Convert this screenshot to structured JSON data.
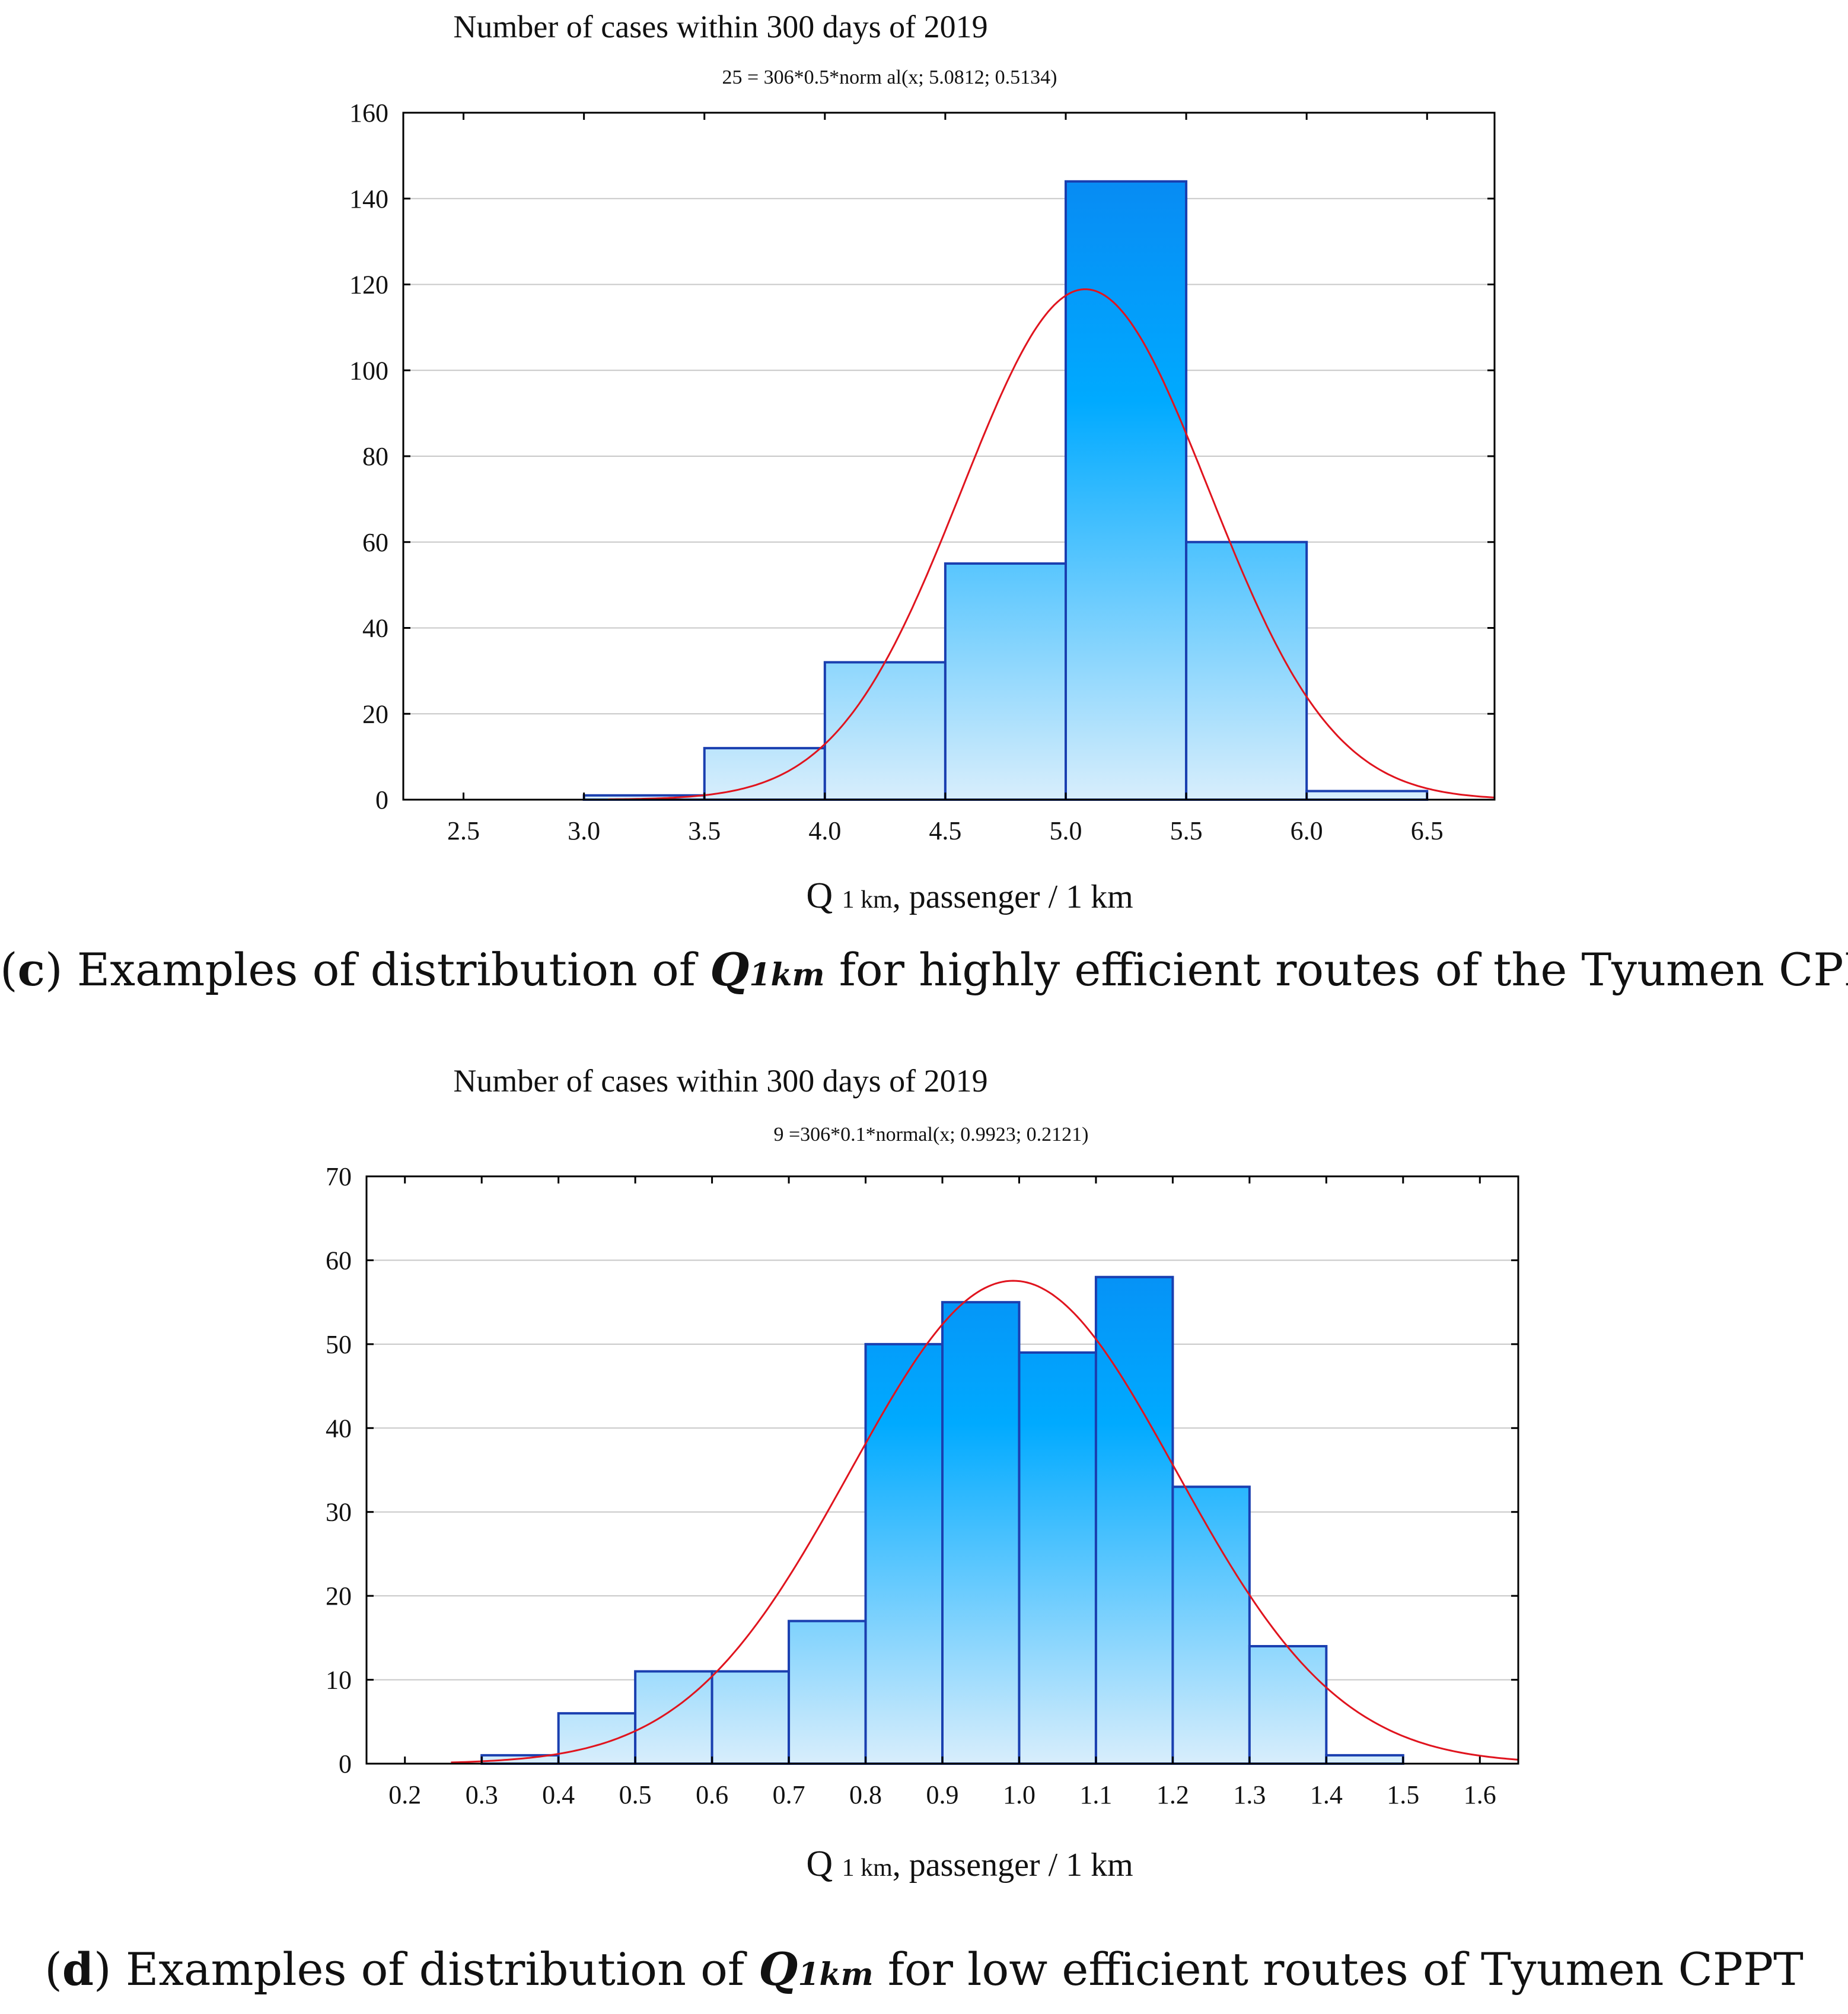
{
  "chart_data": [
    {
      "type": "bar",
      "panel": "c",
      "title": "Number of cases within 300 days of 2019",
      "subtitle": "25 = 306*0.5*norm al(x; 5.0812; 0.5134)",
      "xlabel_main": "Q",
      "xlabel_sub": "1 km",
      "xlabel_rest": ", passenger / 1 km",
      "ylabel": "",
      "xlim": [
        2.25,
        6.78
      ],
      "ylim": [
        0,
        160
      ],
      "xticks": [
        2.5,
        3.0,
        3.5,
        4.0,
        4.5,
        5.0,
        5.5,
        6.0,
        6.5
      ],
      "xtick_labels": [
        "2.5",
        "3.0",
        "3.5",
        "4.0",
        "4.5",
        "5.0",
        "5.5",
        "6.0",
        "6.5"
      ],
      "yticks": [
        0,
        20,
        40,
        60,
        80,
        100,
        120,
        140,
        160
      ],
      "ytick_labels": [
        "0",
        "20",
        "40",
        "60",
        "80",
        "100",
        "120",
        "140",
        "160"
      ],
      "bins": [
        {
          "x0": 3.0,
          "x1": 3.5,
          "value": 1
        },
        {
          "x0": 3.5,
          "x1": 4.0,
          "value": 12
        },
        {
          "x0": 4.0,
          "x1": 4.5,
          "value": 32
        },
        {
          "x0": 4.5,
          "x1": 5.0,
          "value": 55
        },
        {
          "x0": 5.0,
          "x1": 5.5,
          "value": 144
        },
        {
          "x0": 5.5,
          "x1": 6.0,
          "value": 60
        },
        {
          "x0": 6.0,
          "x1": 6.5,
          "value": 2
        }
      ],
      "fit": {
        "n": 306,
        "binwidth": 0.5,
        "mean": 5.0812,
        "sd": 0.5134,
        "x_start": 3.1,
        "x_end": 6.78
      },
      "grid": true
    },
    {
      "type": "bar",
      "panel": "d",
      "title": "Number of cases within 300 days of 2019",
      "subtitle": "9 =306*0.1*normal(x; 0.9923; 0.2121)",
      "xlabel_main": "Q",
      "xlabel_sub": "1 km",
      "xlabel_rest": ", passenger / 1 km",
      "ylabel": "",
      "xlim": [
        0.15,
        1.65
      ],
      "ylim": [
        0,
        70
      ],
      "xticks": [
        0.2,
        0.3,
        0.4,
        0.5,
        0.6,
        0.7,
        0.8,
        0.9,
        1.0,
        1.1,
        1.2,
        1.3,
        1.4,
        1.5,
        1.6
      ],
      "xtick_labels": [
        "0.2",
        "0.3",
        "0.4",
        "0.5",
        "0.6",
        "0.7",
        "0.8",
        "0.9",
        "1.0",
        "1.1",
        "1.2",
        "1.3",
        "1.4",
        "1.5",
        "1.6"
      ],
      "yticks": [
        0,
        10,
        20,
        30,
        40,
        50,
        60,
        70
      ],
      "ytick_labels": [
        "0",
        "10",
        "20",
        "30",
        "40",
        "50",
        "60",
        "70"
      ],
      "bins": [
        {
          "x0": 0.3,
          "x1": 0.4,
          "value": 1
        },
        {
          "x0": 0.4,
          "x1": 0.5,
          "value": 6
        },
        {
          "x0": 0.5,
          "x1": 0.6,
          "value": 11
        },
        {
          "x0": 0.6,
          "x1": 0.7,
          "value": 11
        },
        {
          "x0": 0.7,
          "x1": 0.8,
          "value": 17
        },
        {
          "x0": 0.8,
          "x1": 0.9,
          "value": 50
        },
        {
          "x0": 0.9,
          "x1": 1.0,
          "value": 55
        },
        {
          "x0": 1.0,
          "x1": 1.1,
          "value": 49
        },
        {
          "x0": 1.1,
          "x1": 1.2,
          "value": 58
        },
        {
          "x0": 1.2,
          "x1": 1.3,
          "value": 33
        },
        {
          "x0": 1.3,
          "x1": 1.4,
          "value": 14
        },
        {
          "x0": 1.4,
          "x1": 1.5,
          "value": 1
        }
      ],
      "fit": {
        "n": 306,
        "binwidth": 0.1,
        "mean": 0.9923,
        "sd": 0.2121,
        "x_start": 0.26,
        "x_end": 1.65
      },
      "grid": true
    }
  ],
  "colors": {
    "bar_top": "#0a82f0",
    "bar_mid": "#00aaff",
    "bar_bottom": "#d8eefc",
    "bar_edge": "#1a3fb0",
    "fit_curve": "#e0141e",
    "grid": "#c8c8c8"
  },
  "captions": {
    "c": {
      "letter": "c",
      "text_before": " Examples of distribution of ",
      "q": "Q",
      "q_sub": "1km",
      "text_after": " for highly efficient routes of the Tyumen CPPT."
    },
    "d": {
      "letter": "d",
      "text_before": " Examples of distribution of ",
      "q": "Q",
      "q_sub": "1km",
      "text_after": " for low efficient routes of Tyumen CPPT"
    }
  }
}
